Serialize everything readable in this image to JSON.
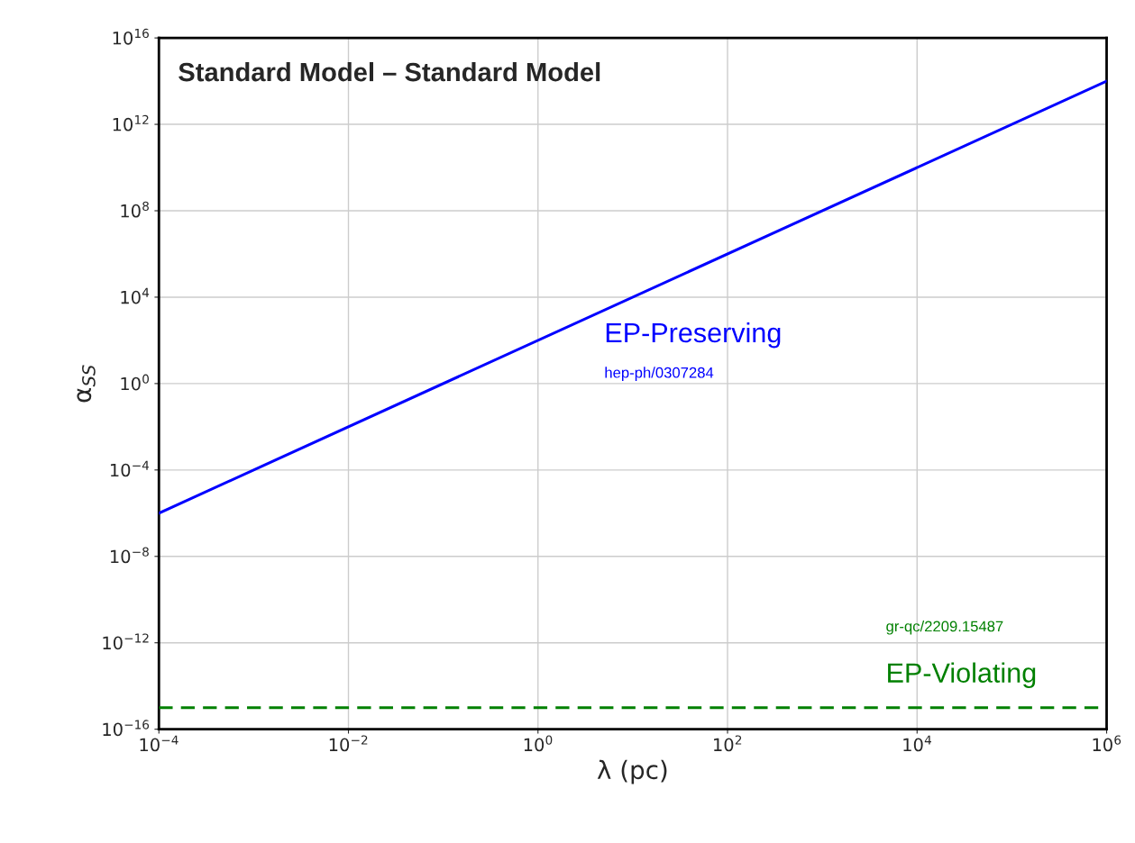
{
  "chart_data": {
    "type": "line",
    "title": "Standard Model – Standard Model",
    "xlabel": "λ (pc)",
    "ylabel": "α$_{SS}$",
    "log": "xy",
    "grid": true,
    "legend": false,
    "x": [
      0.0001,
      1000000
    ],
    "series": [
      {
        "name": "EP-Preserving",
        "color": "#0000ff",
        "values": [
          1e-06,
          100000000000000.0
        ],
        "line_style": "solid"
      },
      {
        "name": "EP-Violating",
        "color": "#008000",
        "values": [
          1e-15,
          1e-15
        ],
        "line_style": "dashed"
      }
    ],
    "annotations": [
      "hep-ph/0307284",
      "gr-qc/2209.15487"
    ],
    "xlim": [
      0.0001,
      1000000
    ],
    "xticks": [
      {
        "value": 0.0001,
        "label": "10$^{−4}$"
      },
      {
        "value": 0.01,
        "label": "10$^{−2}$"
      },
      {
        "value": 1,
        "label": "10$^{0}$"
      },
      {
        "value": 100,
        "label": "10$^{2}$"
      },
      {
        "value": 10000,
        "label": "10$^{4}$"
      },
      {
        "value": 1000000,
        "label": "10$^{6}$"
      }
    ],
    "ylim": [
      1e-16,
      1e+16
    ],
    "yticks": [
      {
        "value": 1e-16,
        "label": "10$^{−16}$"
      },
      {
        "value": 1e-12,
        "label": "10$^{−12}$"
      },
      {
        "value": 1e-08,
        "label": "10$^{−8}$"
      },
      {
        "value": 0.0001,
        "label": "10$^{−4}$"
      },
      {
        "value": 1,
        "label": "10$^{0}$"
      },
      {
        "value": 10000,
        "label": "10$^{4}$"
      },
      {
        "value": 100000000.0,
        "label": "10$^{8}$"
      },
      {
        "value": 1000000000000.0,
        "label": "10$^{12}$"
      },
      {
        "value": 1e+16,
        "label": "10$^{16}$"
      }
    ]
  }
}
